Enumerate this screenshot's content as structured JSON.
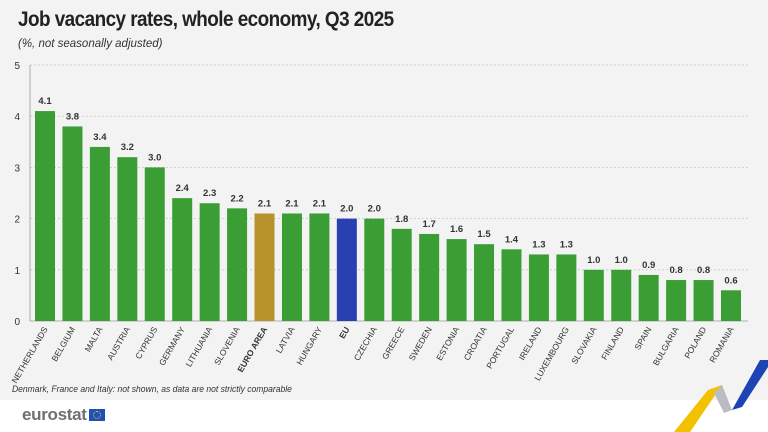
{
  "colors": {
    "default": "#3a9e35",
    "euro_area": "#b8922a",
    "eu": "#2a3fb0"
  },
  "chart_data": {
    "type": "bar",
    "title": "Job vacancy rates, whole economy, Q3 2025",
    "subtitle": "(%, not seasonally adjusted)",
    "ylim": [
      0,
      5
    ],
    "yticks": [
      "0",
      "1",
      "2",
      "3",
      "4",
      "5"
    ],
    "grid": true,
    "categories": [
      "NETHERLANDS",
      "BELGIUM",
      "MALTA",
      "AUSTRIA",
      "CYPRUS",
      "GERMANY",
      "LITHUANIA",
      "SLOVENIA",
      "EURO AREA",
      "LATVIA",
      "HUNGARY",
      "EU",
      "CZECHIA",
      "GREECE",
      "SWEDEN",
      "ESTONIA",
      "CROATIA",
      "PORTUGAL",
      "IRELAND",
      "LUXEMBOURG",
      "SLOVAKIA",
      "FINLAND",
      "SPAIN",
      "BULGARIA",
      "POLAND",
      "ROMANIA"
    ],
    "values": [
      4.1,
      3.8,
      3.4,
      3.2,
      3.0,
      2.4,
      2.3,
      2.2,
      2.1,
      2.1,
      2.1,
      2.0,
      2.0,
      1.8,
      1.7,
      1.6,
      1.5,
      1.4,
      1.3,
      1.3,
      1.0,
      1.0,
      0.9,
      0.8,
      0.8,
      0.6
    ],
    "data_labels": [
      "4.1",
      "3.8",
      "3.4",
      "3.2",
      "3.0",
      "2.4",
      "2.3",
      "2.2",
      "2.1",
      "2.1",
      "2.1",
      "2.0",
      "2.0",
      "1.8",
      "1.7",
      "1.6",
      "1.5",
      "1.4",
      "1.3",
      "1.3",
      "1.0",
      "1.0",
      "0.9",
      "0.8",
      "0.8",
      "0.6"
    ],
    "highlighted": [
      "EURO AREA",
      "EU"
    ]
  },
  "footnote": "Denmark, France and Italy: not shown, as data are not strictly comparable",
  "logo": "eurostat"
}
